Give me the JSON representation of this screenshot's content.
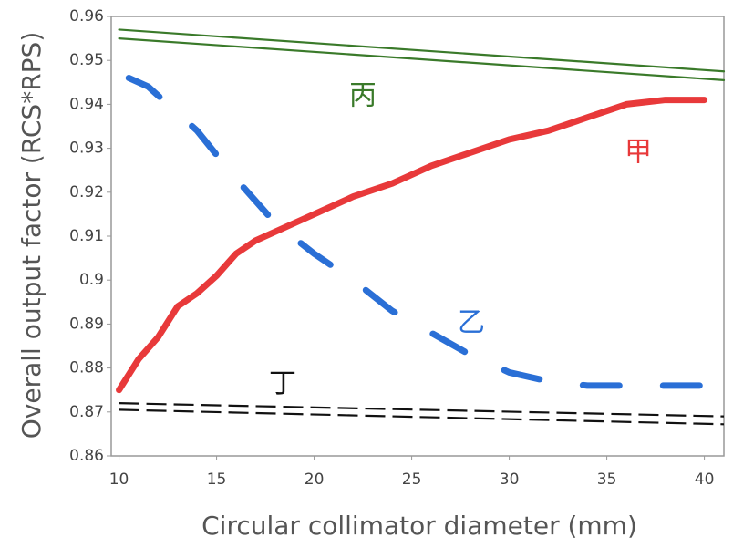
{
  "chart_data": {
    "type": "line",
    "x_label": "Circular collimator diameter (mm)",
    "y_label": "Overall output factor (RCS*RPS)",
    "xlim": [
      9.6,
      41
    ],
    "ylim": [
      0.86,
      0.96
    ],
    "xticks": [
      10,
      15,
      20,
      25,
      30,
      35,
      40
    ],
    "yticks": [
      0.86,
      0.87,
      0.88,
      0.89,
      0.9,
      0.91,
      0.92,
      0.93,
      0.94,
      0.95,
      0.96
    ],
    "series": [
      {
        "name": "甲",
        "color": "#e8393a",
        "style": "solid",
        "x": [
          10,
          11,
          12,
          13,
          14,
          15,
          16,
          17,
          18,
          19,
          20,
          22,
          24,
          26,
          28,
          30,
          32,
          34,
          36,
          38,
          40
        ],
        "values": [
          0.875,
          0.882,
          0.887,
          0.894,
          0.897,
          0.901,
          0.906,
          0.909,
          0.911,
          0.913,
          0.915,
          0.919,
          0.922,
          0.926,
          0.929,
          0.932,
          0.934,
          0.937,
          0.94,
          0.941,
          0.941
        ]
      },
      {
        "name": "乙",
        "color": "#2a6fd6",
        "style": "dashed",
        "x": [
          10.5,
          11.5,
          12.5,
          14,
          16,
          18,
          20,
          22,
          24,
          26,
          28,
          30,
          32,
          34,
          36,
          38,
          40
        ],
        "values": [
          0.946,
          0.944,
          0.94,
          0.934,
          0.923,
          0.913,
          0.906,
          0.9,
          0.893,
          0.888,
          0.883,
          0.879,
          0.877,
          0.876,
          0.876,
          0.876,
          0.876
        ]
      },
      {
        "name": "丙",
        "color": "#3a7a2a",
        "style": "solid",
        "x": [
          10,
          41
        ],
        "values": [
          0.957,
          0.9475
        ]
      },
      {
        "color": "#3a7a2a",
        "style": "solid",
        "x": [
          10,
          41
        ],
        "values": [
          0.955,
          0.9455
        ]
      },
      {
        "name": "丁",
        "color": "#111111",
        "style": "dashed",
        "x": [
          10,
          41
        ],
        "values": [
          0.872,
          0.869
        ]
      },
      {
        "color": "#111111",
        "style": "dashed",
        "x": [
          10,
          41
        ],
        "values": [
          0.8705,
          0.8672
        ]
      }
    ]
  }
}
